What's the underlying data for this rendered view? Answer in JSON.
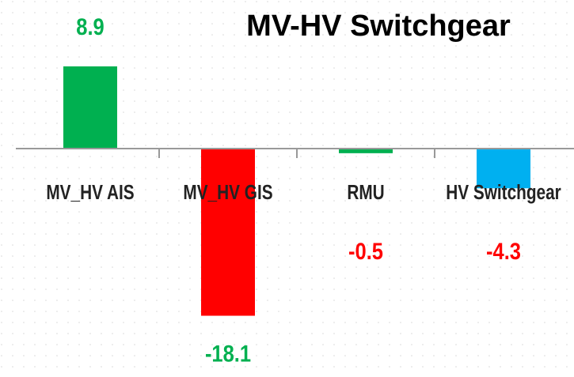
{
  "chart_data": {
    "type": "bar",
    "title": "MV-HV Switchgear",
    "categories": [
      "MV_HV AIS",
      "MV_HV GIS",
      "RMU",
      "HV Switchgear"
    ],
    "values": [
      8.9,
      -18.1,
      -0.5,
      -4.3
    ],
    "colors": [
      "#00b050",
      "#ff0000",
      "#00b050",
      "#00b0f0"
    ],
    "label_colors": [
      "#00b050",
      "#00b050",
      "#ff0000",
      "#ff0000"
    ]
  }
}
